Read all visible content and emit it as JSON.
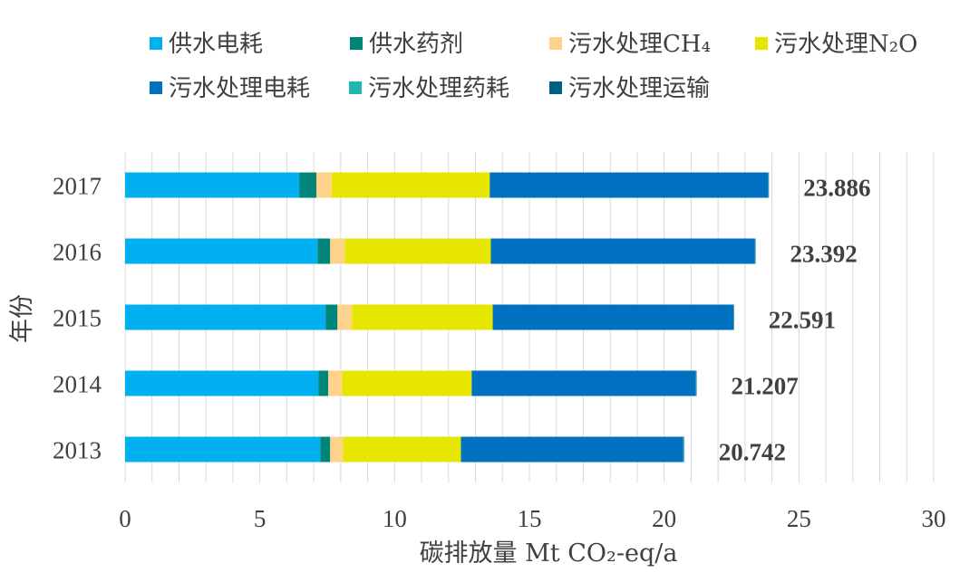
{
  "chart_data": {
    "type": "bar",
    "orientation": "horizontal",
    "stacked": true,
    "categories": [
      "2017",
      "2016",
      "2015",
      "2014",
      "2013"
    ],
    "series": [
      {
        "name": "供水电耗",
        "color": "#00B0F0",
        "values": [
          6.46,
          7.14,
          7.44,
          7.17,
          7.24
        ]
      },
      {
        "name": "供水药剂",
        "color": "#00857A",
        "values": [
          0.64,
          0.47,
          0.44,
          0.37,
          0.37
        ]
      },
      {
        "name": "污水处理CH₄",
        "color": "#FFD28C",
        "values": [
          0.57,
          0.54,
          0.54,
          0.51,
          0.47
        ]
      },
      {
        "name": "污水处理N₂O",
        "color": "#E6E600",
        "values": [
          5.86,
          5.42,
          5.22,
          4.81,
          4.38
        ]
      },
      {
        "name": "污水处理电耗",
        "color": "#0070C0",
        "values": [
          10.33,
          9.8,
          8.93,
          8.32,
          8.25
        ]
      },
      {
        "name": "污水处理药耗",
        "color": "#1FB8B0",
        "values": [
          0.013,
          0.011,
          0.01,
          0.013,
          0.016
        ]
      },
      {
        "name": "污水处理运输",
        "color": "#00607F",
        "values": [
          0.013,
          0.011,
          0.011,
          0.014,
          0.016
        ]
      }
    ],
    "totals": [
      23.886,
      23.392,
      22.591,
      21.207,
      20.742
    ],
    "xlabel": "碳排放量 Mt CO₂-eq/a",
    "ylabel": "年份",
    "xlim": [
      0,
      30
    ],
    "xticks": [
      0,
      5,
      10,
      15,
      20,
      25,
      30
    ],
    "grid": true,
    "legend": "top"
  }
}
